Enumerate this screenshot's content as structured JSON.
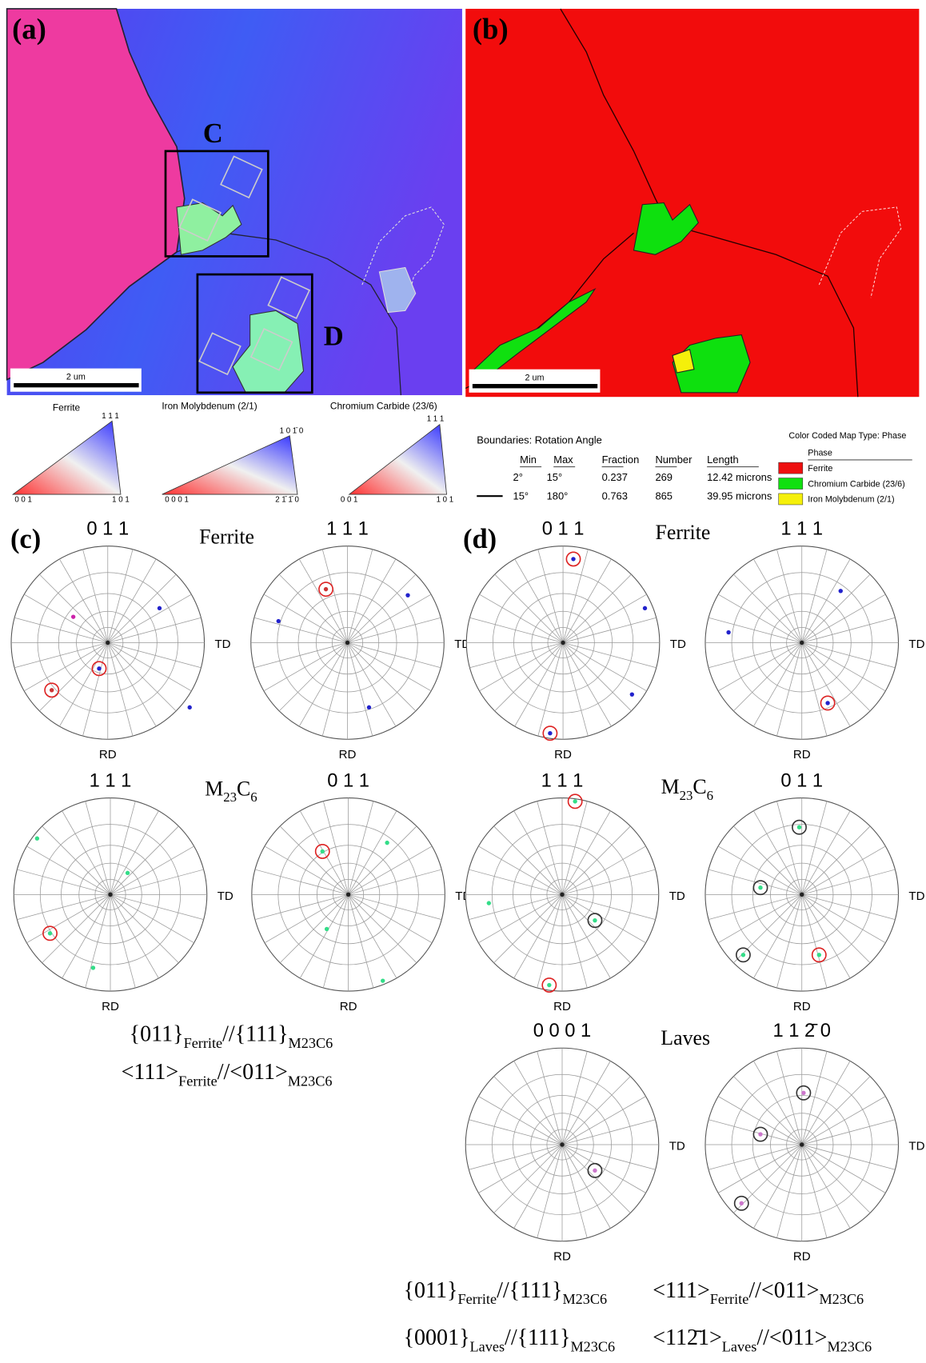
{
  "map_a": {
    "label": "(a)",
    "boxes": [
      "C",
      "D"
    ],
    "scale_bar": "2 um"
  },
  "map_b": {
    "label": "(b)",
    "scale_bar": "2 um"
  },
  "ipf_keys": [
    {
      "title": "Ferrite",
      "corners": [
        "0 0 1",
        "1 0 1",
        "1 1 1"
      ]
    },
    {
      "title": "Iron Molybdenum (2/1)",
      "corners": [
        "0 0 0 1",
        "2 1̄ 1̄ 0",
        "1 0 1̄ 0"
      ]
    },
    {
      "title": "Chromium Carbide (23/6)",
      "corners": [
        "0 0 1",
        "1 0 1",
        "1 1 1"
      ]
    }
  ],
  "boundaries": {
    "title": "Boundaries: Rotation Angle",
    "headers": [
      "Min",
      "Max",
      "Fraction",
      "Number",
      "Length"
    ],
    "rows": [
      [
        "2°",
        "15°",
        "0.237",
        "269",
        "12.42 microns"
      ],
      [
        "15°",
        "180°",
        "0.763",
        "865",
        "39.95 microns"
      ]
    ]
  },
  "phase_legend": {
    "title": "Color Coded Map Type: Phase",
    "header": "Phase",
    "phases": [
      "Ferrite",
      "Chromium Carbide (23/6)",
      "Iron Molybdenum (2/1)"
    ]
  },
  "panel_c": {
    "label": "(c)",
    "phase_labels": [
      [
        "Ferrite"
      ],
      [
        "M",
        "23",
        "C",
        "6"
      ]
    ],
    "pole_figures": [
      {
        "title": "0 1 1",
        "td": "TD",
        "rd": "RD"
      },
      {
        "title": "1 1 1",
        "td": "TD",
        "rd": "RD"
      },
      {
        "title": "1 1 1",
        "td": "TD",
        "rd": "RD"
      },
      {
        "title": "0 1 1",
        "td": "TD",
        "rd": "RD"
      }
    ],
    "relations": [
      [
        "{011}",
        "Ferrite",
        "//{111}",
        "M23C6"
      ],
      [
        "<111>",
        "Ferrite",
        "//<011>",
        "M23C6"
      ]
    ]
  },
  "panel_d": {
    "label": "(d)",
    "phase_labels": [
      [
        "Ferrite"
      ],
      [
        "M",
        "23",
        "C",
        "6"
      ],
      [
        "Laves"
      ]
    ],
    "pole_figures": [
      {
        "title": "0 1 1",
        "td": "TD",
        "rd": "RD"
      },
      {
        "title": "1 1 1",
        "td": "TD",
        "rd": "RD"
      },
      {
        "title": "1 1 1",
        "td": "TD",
        "rd": "RD"
      },
      {
        "title": "0 1 1",
        "td": "TD",
        "rd": "RD"
      },
      {
        "title": "0 0 0 1",
        "td": "TD",
        "rd": "RD"
      },
      {
        "title": "1 1 2̄ 0",
        "td": "TD",
        "rd": "RD"
      }
    ],
    "relations": [
      [
        "{011}",
        "Ferrite",
        "//{111}",
        "M23C6"
      ],
      [
        "<111>",
        "Ferrite",
        "//<011>",
        "M23C6"
      ],
      [
        "{0001}",
        "Laves",
        "//{111}",
        "M23C6"
      ],
      [
        "<112̄1>",
        "Laves",
        "//<011>",
        "M23C6"
      ]
    ]
  }
}
